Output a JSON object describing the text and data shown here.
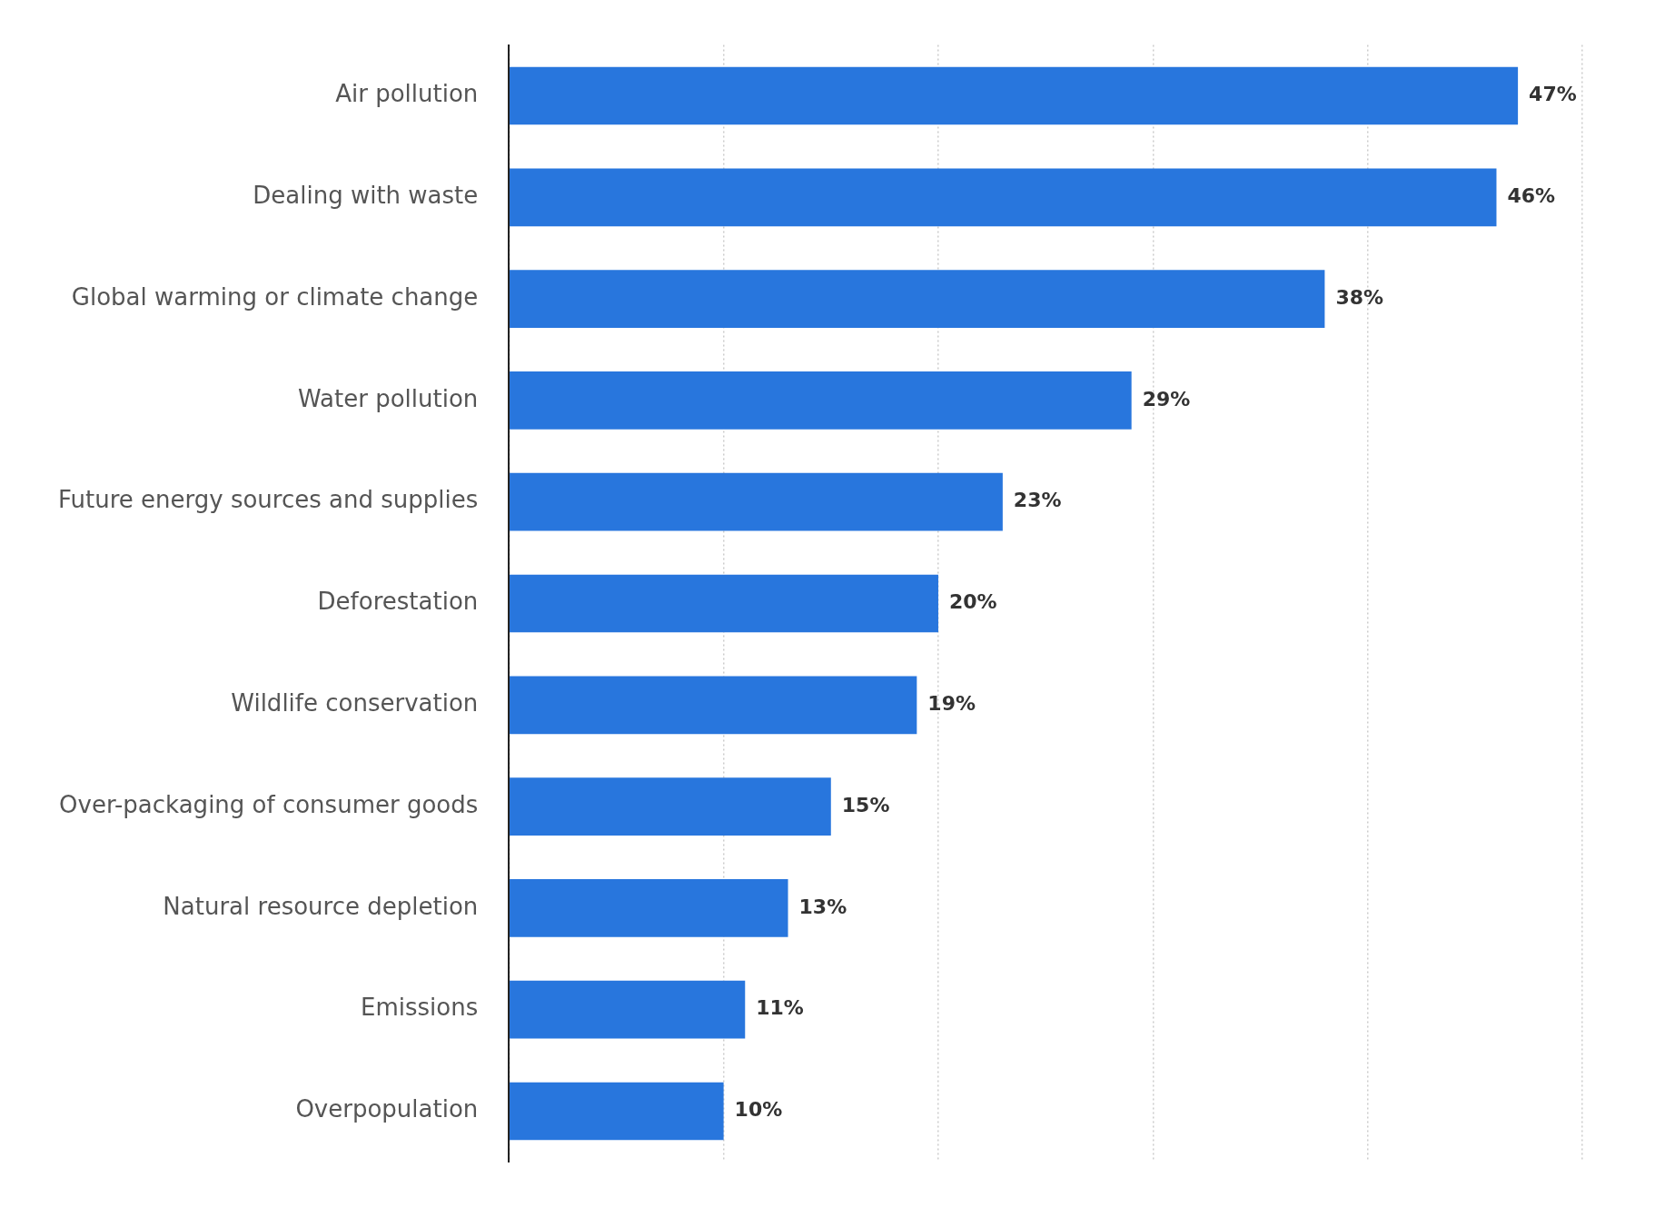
{
  "chart_data": {
    "type": "bar",
    "orientation": "horizontal",
    "categories": [
      "Air pollution",
      "Dealing with waste",
      "Global warming or climate change",
      "Water pollution",
      "Future energy sources and supplies",
      "Deforestation",
      "Wildlife conservation",
      "Over-packaging of consumer goods",
      "Natural resource depletion",
      "Emissions",
      "Overpopulation"
    ],
    "values": [
      47,
      46,
      38,
      29,
      23,
      20,
      19,
      15,
      13,
      11,
      10
    ],
    "value_labels": [
      "47%",
      "46%",
      "38%",
      "29%",
      "23%",
      "20%",
      "19%",
      "15%",
      "13%",
      "11%",
      "10%"
    ],
    "color": "#2876dd",
    "xlim": [
      0,
      50
    ],
    "xticks": [
      {
        "value": 0,
        "label": null
      },
      {
        "value": 10,
        "label": null
      },
      {
        "value": 20,
        "label": null
      },
      {
        "value": 30,
        "label": null
      },
      {
        "value": 40,
        "label": null
      },
      {
        "value": 50,
        "label": null
      }
    ],
    "grid": "x",
    "tick_labels": "y",
    "legend": false
  }
}
